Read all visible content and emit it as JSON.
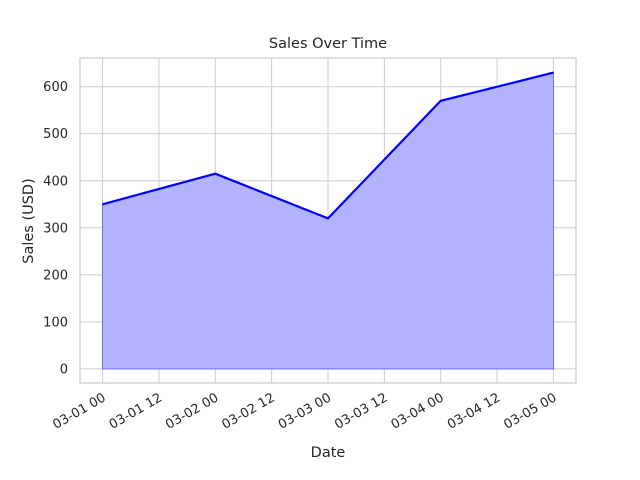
{
  "chart_data": {
    "type": "area",
    "title": "Sales Over Time",
    "xlabel": "Date",
    "ylabel": "Sales (USD)",
    "x": [
      "2023-03-01",
      "2023-03-02",
      "2023-03-03",
      "2023-03-04",
      "2023-03-05"
    ],
    "series": [
      {
        "values": [
          350,
          415,
          320,
          570,
          630
        ]
      }
    ],
    "x_tick_labels": [
      "03-01 00",
      "03-01 12",
      "03-02 00",
      "03-02 12",
      "03-03 00",
      "03-03 12",
      "03-04 00",
      "03-04 12",
      "03-05 00"
    ],
    "y_ticks": [
      0,
      100,
      200,
      300,
      400,
      500,
      600
    ],
    "ylim": [
      -30,
      661
    ],
    "grid": true,
    "line_color": "#0000ff",
    "fill_color": "#b3b3ff"
  }
}
